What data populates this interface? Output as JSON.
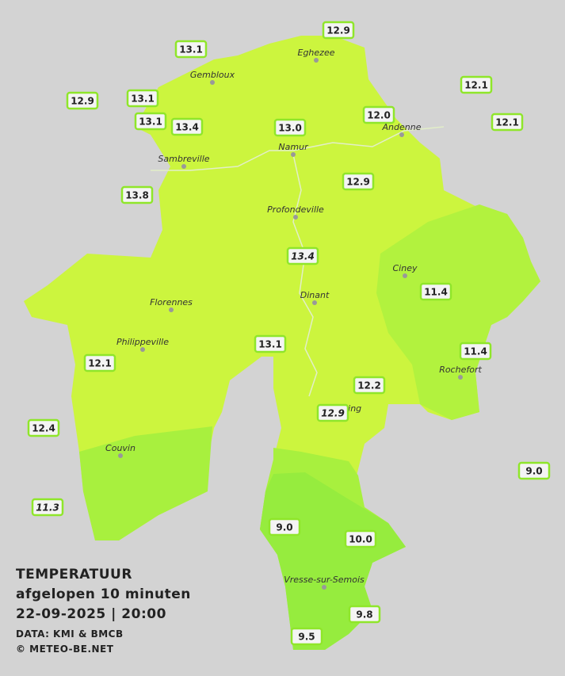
{
  "stations": [
    "13.1",
    "12.9",
    "12.1",
    "12.9",
    "13.1",
    "13.1",
    "13.4",
    "13.0",
    "12.0",
    "12.1",
    "13.8",
    "12.9",
    "13.4",
    "11.4",
    "13.1",
    "11.4",
    "12.1",
    "12.2",
    "12.9",
    "12.4",
    "9.0",
    "11.3",
    "9.0",
    "10.0",
    "9.8",
    "9.5"
  ],
  "cities": [
    "Eghezee",
    "Gembloux",
    "Andenne",
    "Namur",
    "Sambreville",
    "Profondeville",
    "Ciney",
    "Florennes",
    "Dinant",
    "Philippeville",
    "Rochefort",
    "Beauraing",
    "Couvin",
    "Vresse-sur-Semois"
  ],
  "legend": {
    "title": "TEMPERATUUR",
    "subtitle": "afgelopen 10 minuten",
    "datetime": "22-09-2025  |  20:00",
    "source": "DATA: KMI & BMCB",
    "credit": "© METEO-BE.NET"
  }
}
